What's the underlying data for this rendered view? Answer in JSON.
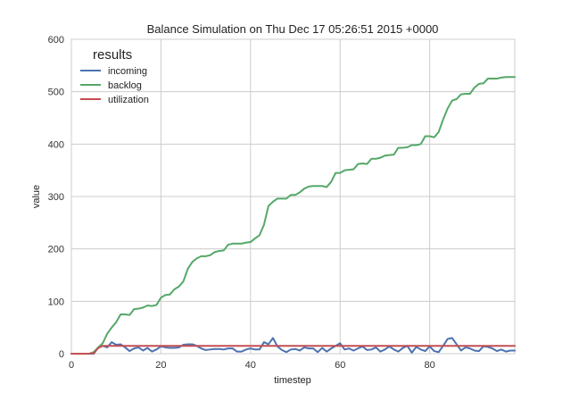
{
  "chart_data": {
    "type": "line",
    "title": "Balance Simulation on Thu Dec 17 05:26:51 2015 +0000",
    "xlabel": "timestep",
    "ylabel": "value",
    "xlim": [
      0,
      99
    ],
    "ylim": [
      0,
      600
    ],
    "xticks": [
      0,
      20,
      40,
      60,
      80
    ],
    "yticks": [
      0,
      100,
      200,
      300,
      400,
      500,
      600
    ],
    "grid": true,
    "legend": {
      "title": "results",
      "placement": "top-left"
    },
    "series": [
      {
        "name": "incoming",
        "color": "#4c72b0",
        "x": [
          0,
          1,
          2,
          3,
          4,
          5,
          6,
          7,
          8,
          9,
          10,
          11,
          12,
          13,
          14,
          15,
          16,
          17,
          18,
          19,
          20,
          21,
          22,
          23,
          24,
          25,
          26,
          27,
          28,
          29,
          30,
          31,
          32,
          33,
          34,
          35,
          36,
          37,
          38,
          39,
          40,
          41,
          42,
          43,
          44,
          45,
          46,
          47,
          48,
          49,
          50,
          51,
          52,
          53,
          54,
          55,
          56,
          57,
          58,
          59,
          60,
          61,
          62,
          63,
          64,
          65,
          66,
          67,
          68,
          69,
          70,
          71,
          72,
          73,
          74,
          75,
          76,
          77,
          78,
          79,
          80,
          81,
          82,
          83,
          84,
          85,
          86,
          87,
          88,
          89,
          90,
          91,
          92,
          93,
          94,
          95,
          96,
          97,
          98,
          99
        ],
        "values": [
          0,
          0,
          0,
          0,
          0,
          0,
          12,
          15,
          12,
          22,
          17,
          18,
          12,
          5,
          10,
          12,
          6,
          11,
          4,
          8,
          14,
          12,
          11,
          11,
          12,
          17,
          18,
          18,
          15,
          10,
          7,
          8,
          9,
          9,
          8,
          10,
          10,
          4,
          4,
          8,
          10,
          8,
          8,
          22,
          18,
          30,
          14,
          7,
          3,
          8,
          9,
          6,
          12,
          10,
          10,
          3,
          11,
          4,
          10,
          15,
          20,
          8,
          10,
          6,
          10,
          14,
          7,
          8,
          12,
          4,
          8,
          14,
          8,
          4,
          11,
          15,
          2,
          13,
          8,
          5,
          14,
          5,
          3,
          15,
          28,
          30,
          18,
          6,
          12,
          10,
          6,
          5,
          14,
          13,
          10,
          5,
          8,
          4,
          6,
          6
        ]
      },
      {
        "name": "backlog",
        "color": "#55a868",
        "x": [
          0,
          1,
          2,
          3,
          4,
          5,
          6,
          7,
          8,
          9,
          10,
          11,
          12,
          13,
          14,
          15,
          16,
          17,
          18,
          19,
          20,
          21,
          22,
          23,
          24,
          25,
          26,
          27,
          28,
          29,
          30,
          31,
          32,
          33,
          34,
          35,
          36,
          37,
          38,
          39,
          40,
          41,
          42,
          43,
          44,
          45,
          46,
          47,
          48,
          49,
          50,
          51,
          52,
          53,
          54,
          55,
          56,
          57,
          58,
          59,
          60,
          61,
          62,
          63,
          64,
          65,
          66,
          67,
          68,
          69,
          70,
          71,
          72,
          73,
          74,
          75,
          76,
          77,
          78,
          79,
          80,
          81,
          82,
          83,
          84,
          85,
          86,
          87,
          88,
          89,
          90,
          91,
          92,
          93,
          94,
          95,
          96,
          97,
          98,
          99
        ],
        "values": [
          0,
          0,
          0,
          0,
          0,
          3,
          12,
          20,
          38,
          50,
          60,
          75,
          75,
          74,
          85,
          86,
          88,
          92,
          91,
          93,
          107,
          112,
          113,
          123,
          128,
          138,
          162,
          175,
          182,
          186,
          186,
          188,
          194,
          196,
          197,
          208,
          210,
          210,
          210,
          212,
          213,
          220,
          226,
          246,
          282,
          290,
          296,
          296,
          296,
          303,
          303,
          308,
          315,
          319,
          320,
          320,
          320,
          318,
          328,
          345,
          345,
          350,
          351,
          352,
          362,
          363,
          362,
          372,
          372,
          374,
          378,
          379,
          380,
          393,
          393,
          394,
          398,
          398,
          400,
          415,
          415,
          413,
          423,
          447,
          468,
          483,
          486,
          495,
          496,
          496,
          508,
          515,
          516,
          525,
          525,
          525,
          527,
          528,
          528,
          528
        ]
      },
      {
        "name": "utilization",
        "color": "#c44e52",
        "x": [
          0,
          1,
          2,
          3,
          4,
          5,
          6,
          7,
          8,
          9,
          10,
          11,
          12,
          13,
          14,
          15,
          16,
          17,
          18,
          19,
          20,
          21,
          22,
          23,
          24,
          25,
          26,
          27,
          28,
          29,
          30,
          31,
          32,
          33,
          34,
          35,
          36,
          37,
          38,
          39,
          40,
          41,
          42,
          43,
          44,
          45,
          46,
          47,
          48,
          49,
          50,
          51,
          52,
          53,
          54,
          55,
          56,
          57,
          58,
          59,
          60,
          61,
          62,
          63,
          64,
          65,
          66,
          67,
          68,
          69,
          70,
          71,
          72,
          73,
          74,
          75,
          76,
          77,
          78,
          79,
          80,
          81,
          82,
          83,
          84,
          85,
          86,
          87,
          88,
          89,
          90,
          91,
          92,
          93,
          94,
          95,
          96,
          97,
          98,
          99
        ],
        "values": [
          0,
          0,
          0,
          0,
          0,
          1,
          11,
          15,
          15,
          15,
          15,
          15,
          15,
          15,
          15,
          15,
          15,
          15,
          15,
          15,
          15,
          15,
          15,
          15,
          15,
          15,
          15,
          15,
          15,
          15,
          15,
          15,
          15,
          15,
          15,
          15,
          15,
          15,
          15,
          15,
          15,
          15,
          15,
          15,
          15,
          15,
          15,
          15,
          15,
          15,
          15,
          15,
          15,
          15,
          15,
          15,
          15,
          15,
          15,
          15,
          15,
          15,
          15,
          15,
          15,
          15,
          15,
          15,
          15,
          15,
          15,
          15,
          15,
          15,
          15,
          15,
          15,
          15,
          15,
          15,
          15,
          15,
          15,
          15,
          15,
          15,
          15,
          15,
          15,
          15,
          15,
          15,
          15,
          15,
          15,
          15,
          15,
          15,
          15,
          15
        ]
      }
    ]
  }
}
